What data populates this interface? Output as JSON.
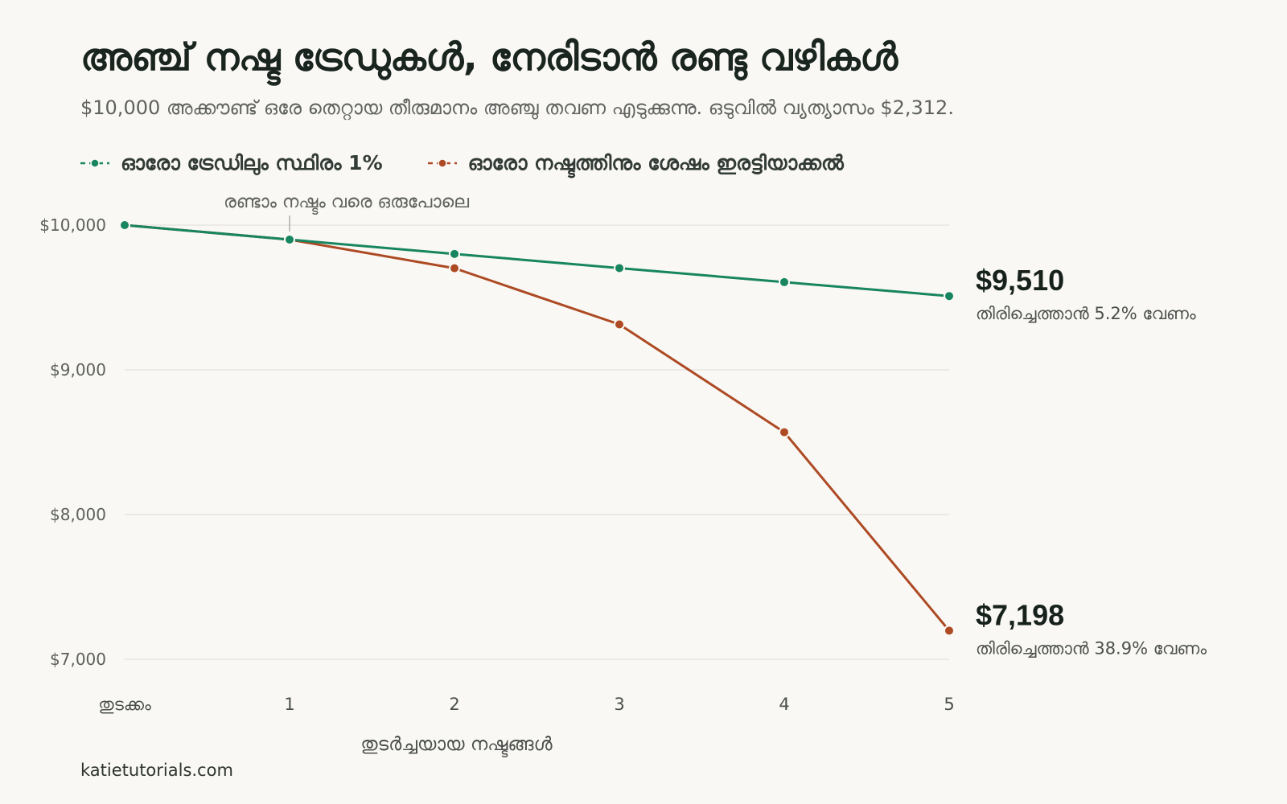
{
  "header": {
    "title": "അഞ്ച് നഷ്ട ട്രേഡുകൾ, നേരിടാൻ രണ്ടു വഴികൾ",
    "subtitle": "$10,000 അക്കൗണ്ട് ഒരേ തെറ്റായ തീരുമാനം അഞ്ചു തവണ എടുക്കുന്നു. ഒടുവിൽ വ്യത്യാസം $2,312."
  },
  "footer": {
    "source": "katietutorials.com"
  },
  "colors": {
    "green": "#17855f",
    "orange": "#ad4a24",
    "grid": "#e3e1dc",
    "background": "#f9f8f4"
  },
  "chart_data": {
    "type": "line",
    "x": [
      0,
      1,
      2,
      3,
      4,
      5
    ],
    "categories": [
      "തുടക്കം",
      "1",
      "2",
      "3",
      "4",
      "5"
    ],
    "xlabel": "തുടർച്ചയായ നഷ്ടങ്ങൾ",
    "ylabel": "",
    "ylim": [
      7000,
      10000
    ],
    "yticks": [
      10000,
      9000,
      8000,
      7000
    ],
    "ytick_labels": [
      "$10,000",
      "$9,000",
      "$8,000",
      "$7,000"
    ],
    "grid": "horizontal",
    "legend_position": "top-left",
    "series": [
      {
        "name": "ഓരോ ട്രേഡിലും സ്ഥിരം 1%",
        "color": "#17855f",
        "values": [
          10000,
          9900,
          9801,
          9703,
          9606,
          9510
        ],
        "end_label": "$9,510",
        "end_note": "തിരിച്ചെത്താൻ 5.2% വേണം"
      },
      {
        "name": "ഓരോ നഷ്ടത്തിനും ശേഷം ഇരട്ടിയാക്കൽ",
        "color": "#ad4a24",
        "values": [
          10000,
          9900,
          9702,
          9314,
          8569,
          7198
        ],
        "end_label": "$7,198",
        "end_note": "തിരിച്ചെത്താൻ 38.9% വേണം"
      }
    ],
    "annotations": [
      {
        "text": "രണ്ടാം നഷ്ടം വരെ ഒരുപോലെ",
        "x": 1,
        "y": 9900
      }
    ]
  }
}
